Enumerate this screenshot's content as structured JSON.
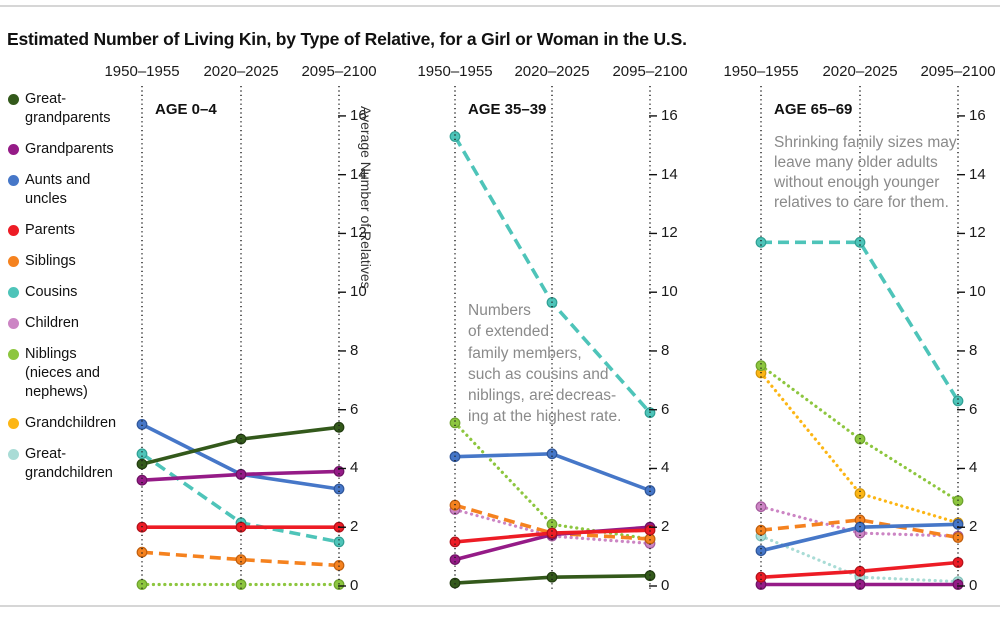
{
  "title": "Estimated Number of Living Kin, by Type of Relative, for a Girl or Woman in the U.S.",
  "legend": {
    "items": [
      {
        "series": "Great-grandparents",
        "label_lines": [
          "Great-",
          "grandparents"
        ]
      },
      {
        "series": "Grandparents",
        "label_lines": [
          "Grandparents"
        ]
      },
      {
        "series": "Aunts and uncles",
        "label_lines": [
          "Aunts and",
          "uncles"
        ]
      },
      {
        "series": "Parents",
        "label_lines": [
          "Parents"
        ]
      },
      {
        "series": "Siblings",
        "label_lines": [
          "Siblings"
        ]
      },
      {
        "series": "Cousins",
        "label_lines": [
          "Cousins"
        ]
      },
      {
        "series": "Children",
        "label_lines": [
          "Children"
        ]
      },
      {
        "series": "Niblings",
        "label_lines": [
          "Niblings",
          "(nieces and",
          "nephews)"
        ]
      },
      {
        "series": "Grandchildren",
        "label_lines": [
          "Grandchildren"
        ]
      },
      {
        "series": "Great-grandchildren",
        "label_lines": [
          "Great-",
          "grandchildren"
        ]
      }
    ]
  },
  "chart_data": {
    "type": "line",
    "x_categories": [
      "1950–1955",
      "2020–2025",
      "2095–2100"
    ],
    "ylabel": "Average Number of Relatives",
    "ylim": [
      0,
      16.5
    ],
    "yticks": [
      0,
      2,
      4,
      6,
      8,
      10,
      12,
      14,
      16
    ],
    "grid": "vertical-dotted",
    "legend_position": "left",
    "series_styles": [
      {
        "name": "Great-grandparents",
        "color": "#33591b",
        "ring": "#223d10",
        "dash": "solid"
      },
      {
        "name": "Grandparents",
        "color": "#951b87",
        "ring": "#6e1263",
        "dash": "solid"
      },
      {
        "name": "Aunts and uncles",
        "color": "#4677c8",
        "ring": "#2f569a",
        "dash": "solid"
      },
      {
        "name": "Parents",
        "color": "#ed1c25",
        "ring": "#b4121a",
        "dash": "solid"
      },
      {
        "name": "Siblings",
        "color": "#f5821f",
        "ring": "#c05f0e",
        "dash": "dashed"
      },
      {
        "name": "Cousins",
        "color": "#4ec4b9",
        "ring": "#2fa094",
        "dash": "dashed"
      },
      {
        "name": "Children",
        "color": "#cc85c4",
        "ring": "#a55c9e",
        "dash": "dotted"
      },
      {
        "name": "Niblings",
        "color": "#8dc63f",
        "ring": "#6da22c",
        "dash": "dotted"
      },
      {
        "name": "Grandchildren",
        "color": "#fcb615",
        "ring": "#d3960a",
        "dash": "dotted"
      },
      {
        "name": "Great-grandchildren",
        "color": "#a9dcd6",
        "ring": "#7fc0b8",
        "dash": "dotted"
      }
    ],
    "panels": [
      {
        "label": "AGE 0–4",
        "annotation_lines": [],
        "series": [
          {
            "name": "Niblings",
            "values": [
              0.05,
              0.05,
              0.05
            ]
          },
          {
            "name": "Cousins",
            "values": [
              4.5,
              2.15,
              1.5
            ]
          },
          {
            "name": "Siblings",
            "values": [
              1.15,
              0.9,
              0.7
            ]
          },
          {
            "name": "Aunts and uncles",
            "values": [
              5.5,
              3.8,
              3.3
            ]
          },
          {
            "name": "Great-grandparents",
            "values": [
              4.15,
              5.0,
              5.4
            ]
          },
          {
            "name": "Grandparents",
            "values": [
              3.6,
              3.8,
              3.9
            ]
          },
          {
            "name": "Parents",
            "values": [
              2.0,
              2.0,
              2.0
            ]
          }
        ]
      },
      {
        "label": "AGE 35–39",
        "annotation_lines": [
          "Numbers",
          "of extended",
          "family members,",
          "such as cousins and",
          "niblings, are decreas-",
          "ing at the highest rate."
        ],
        "series": [
          {
            "name": "Niblings",
            "values": [
              5.55,
              2.1,
              1.6
            ]
          },
          {
            "name": "Children",
            "values": [
              2.6,
              1.7,
              1.45
            ]
          },
          {
            "name": "Cousins",
            "values": [
              15.3,
              9.65,
              5.9
            ]
          },
          {
            "name": "Siblings",
            "values": [
              2.75,
              1.8,
              1.6
            ]
          },
          {
            "name": "Aunts and uncles",
            "values": [
              4.4,
              4.5,
              3.25
            ]
          },
          {
            "name": "Great-grandparents",
            "values": [
              0.1,
              0.3,
              0.35
            ]
          },
          {
            "name": "Grandparents",
            "values": [
              0.9,
              1.75,
              2.0
            ]
          },
          {
            "name": "Parents",
            "values": [
              1.5,
              1.8,
              1.9
            ]
          }
        ]
      },
      {
        "label": "AGE 65–69",
        "annotation_lines": [
          "Shrinking family sizes may",
          "leave many older adults",
          "without enough younger",
          "relatives to care for them."
        ],
        "series": [
          {
            "name": "Grandchildren",
            "values": [
              7.25,
              3.15,
              2.15
            ]
          },
          {
            "name": "Niblings",
            "values": [
              7.5,
              5.0,
              2.9
            ]
          },
          {
            "name": "Great-grandchildren",
            "values": [
              1.7,
              0.3,
              0.15
            ]
          },
          {
            "name": "Children",
            "values": [
              2.7,
              1.8,
              1.7
            ]
          },
          {
            "name": "Cousins",
            "values": [
              11.7,
              11.7,
              6.3
            ]
          },
          {
            "name": "Siblings",
            "values": [
              1.9,
              2.25,
              1.65
            ]
          },
          {
            "name": "Aunts and uncles",
            "values": [
              1.2,
              2.0,
              2.1
            ]
          },
          {
            "name": "Grandparents",
            "values": [
              0.05,
              0.05,
              0.05
            ]
          },
          {
            "name": "Parents",
            "values": [
              0.3,
              0.5,
              0.8
            ]
          }
        ]
      }
    ]
  }
}
